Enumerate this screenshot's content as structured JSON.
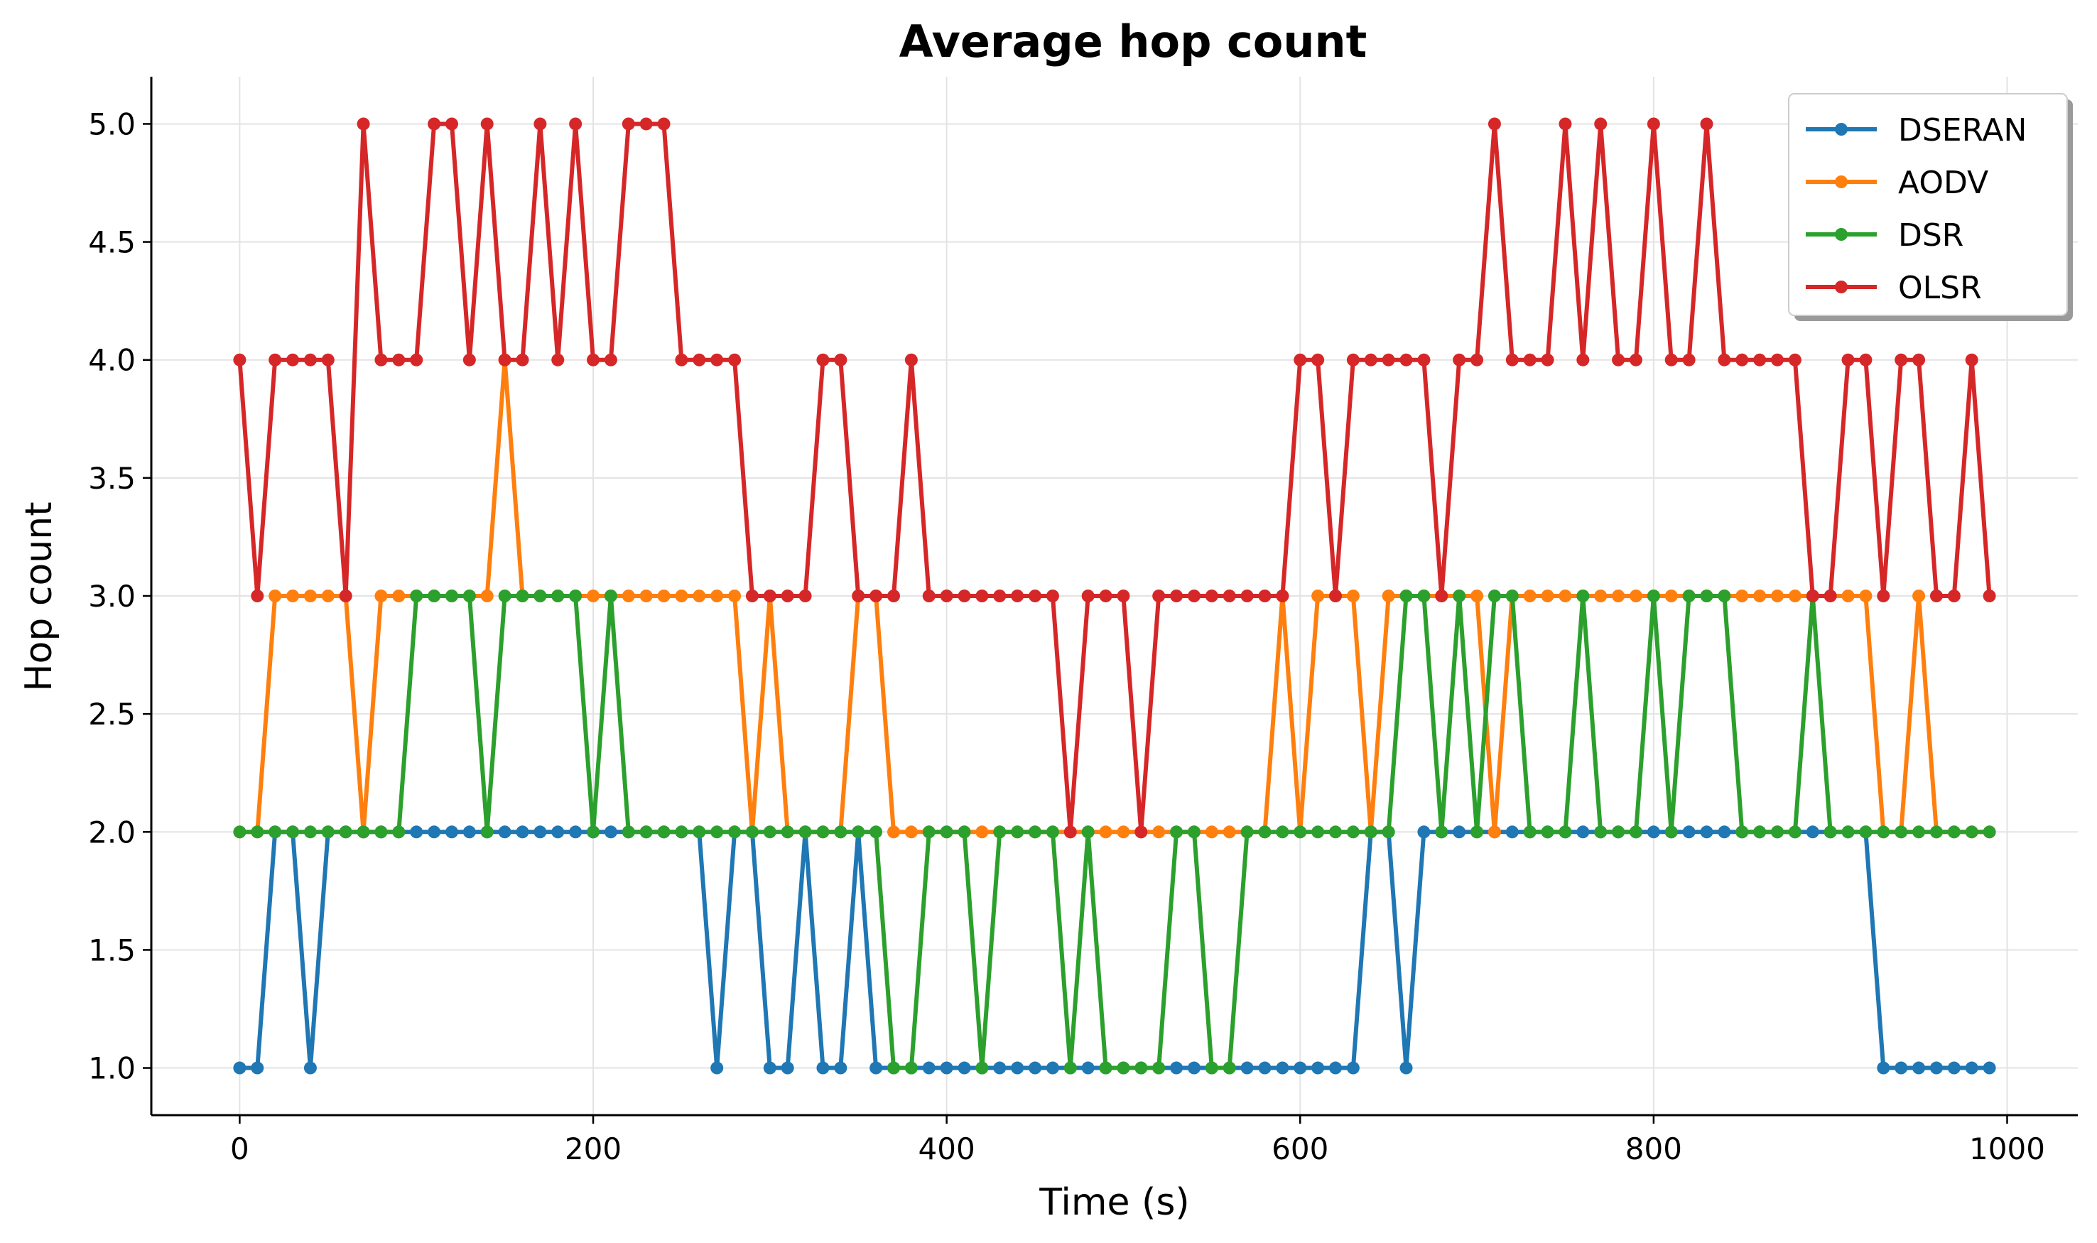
{
  "chart_data": {
    "type": "line",
    "title": "Average hop count",
    "xlabel": "Time (s)",
    "ylabel": "Hop count",
    "xlim": [
      -50,
      1040
    ],
    "ylim": [
      0.8,
      5.2
    ],
    "xticks": [
      0,
      200,
      400,
      600,
      800,
      1000
    ],
    "xtick_labels": [
      "0",
      "200",
      "400",
      "600",
      "800",
      "1000"
    ],
    "yticks": [
      1.0,
      1.5,
      2.0,
      2.5,
      3.0,
      3.5,
      4.0,
      4.5,
      5.0
    ],
    "ytick_labels": [
      "1.0",
      "1.5",
      "2.0",
      "2.5",
      "3.0",
      "3.5",
      "4.0",
      "4.5",
      "5.0"
    ],
    "grid": true,
    "legend_position": "top-right",
    "x": [
      0,
      10,
      20,
      30,
      40,
      50,
      60,
      70,
      80,
      90,
      100,
      110,
      120,
      130,
      140,
      150,
      160,
      170,
      180,
      190,
      200,
      210,
      220,
      230,
      240,
      250,
      260,
      270,
      280,
      290,
      300,
      310,
      320,
      330,
      340,
      350,
      360,
      370,
      380,
      390,
      400,
      410,
      420,
      430,
      440,
      450,
      460,
      470,
      480,
      490,
      500,
      510,
      520,
      530,
      540,
      550,
      560,
      570,
      580,
      590,
      600,
      610,
      620,
      630,
      640,
      650,
      660,
      670,
      680,
      690,
      700,
      710,
      720,
      730,
      740,
      750,
      760,
      770,
      780,
      790,
      800,
      810,
      820,
      830,
      840,
      850,
      860,
      870,
      880,
      890,
      900,
      910,
      920,
      930,
      940,
      950,
      960,
      970,
      980,
      990
    ],
    "series": [
      {
        "name": "DSERAN",
        "color": "#1f77b4",
        "values": [
          1,
          1,
          2,
          2,
          1,
          2,
          2,
          2,
          2,
          2,
          2,
          2,
          2,
          2,
          2,
          2,
          2,
          2,
          2,
          2,
          2,
          2,
          2,
          2,
          2,
          2,
          2,
          1,
          2,
          2,
          1,
          1,
          2,
          1,
          1,
          2,
          1,
          1,
          1,
          1,
          1,
          1,
          1,
          1,
          1,
          1,
          1,
          1,
          1,
          1,
          1,
          1,
          1,
          1,
          1,
          1,
          1,
          1,
          1,
          1,
          1,
          1,
          1,
          1,
          2,
          2,
          1,
          2,
          2,
          2,
          2,
          2,
          2,
          2,
          2,
          2,
          2,
          2,
          2,
          2,
          2,
          2,
          2,
          2,
          2,
          2,
          2,
          2,
          2,
          2,
          2,
          2,
          2,
          1,
          1,
          1,
          1,
          1,
          1,
          1
        ]
      },
      {
        "name": "AODV",
        "color": "#ff7f0e",
        "values": [
          2,
          2,
          3,
          3,
          3,
          3,
          3,
          2,
          3,
          3,
          3,
          3,
          3,
          3,
          3,
          4,
          3,
          3,
          3,
          3,
          3,
          3,
          3,
          3,
          3,
          3,
          3,
          3,
          3,
          2,
          3,
          2,
          2,
          2,
          2,
          3,
          3,
          2,
          2,
          2,
          2,
          2,
          2,
          2,
          2,
          2,
          2,
          2,
          2,
          2,
          2,
          2,
          2,
          2,
          2,
          2,
          2,
          2,
          2,
          3,
          2,
          3,
          3,
          3,
          2,
          3,
          3,
          3,
          3,
          3,
          3,
          2,
          3,
          3,
          3,
          3,
          3,
          3,
          3,
          3,
          3,
          3,
          3,
          3,
          3,
          3,
          3,
          3,
          3,
          3,
          3,
          3,
          3,
          2,
          2,
          3,
          2,
          2,
          2,
          2
        ]
      },
      {
        "name": "DSR",
        "color": "#2ca02c",
        "values": [
          2,
          2,
          2,
          2,
          2,
          2,
          2,
          2,
          2,
          2,
          3,
          3,
          3,
          3,
          2,
          3,
          3,
          3,
          3,
          3,
          2,
          3,
          2,
          2,
          2,
          2,
          2,
          2,
          2,
          2,
          2,
          2,
          2,
          2,
          2,
          2,
          2,
          1,
          1,
          2,
          2,
          2,
          1,
          2,
          2,
          2,
          2,
          1,
          2,
          1,
          1,
          1,
          1,
          2,
          2,
          1,
          1,
          2,
          2,
          2,
          2,
          2,
          2,
          2,
          2,
          2,
          3,
          3,
          2,
          3,
          2,
          3,
          3,
          2,
          2,
          2,
          3,
          2,
          2,
          2,
          3,
          2,
          3,
          3,
          3,
          2,
          2,
          2,
          2,
          3,
          2,
          2,
          2,
          2,
          2,
          2,
          2,
          2,
          2,
          2
        ]
      },
      {
        "name": "OLSR",
        "color": "#d62728",
        "values": [
          4,
          3,
          4,
          4,
          4,
          4,
          3,
          5,
          4,
          4,
          4,
          5,
          5,
          4,
          5,
          4,
          4,
          5,
          4,
          5,
          4,
          4,
          5,
          5,
          5,
          4,
          4,
          4,
          4,
          3,
          3,
          3,
          3,
          4,
          4,
          3,
          3,
          3,
          4,
          3,
          3,
          3,
          3,
          3,
          3,
          3,
          3,
          2,
          3,
          3,
          3,
          2,
          3,
          3,
          3,
          3,
          3,
          3,
          3,
          3,
          4,
          4,
          3,
          4,
          4,
          4,
          4,
          4,
          3,
          4,
          4,
          5,
          4,
          4,
          4,
          5,
          4,
          5,
          4,
          4,
          5,
          4,
          4,
          5,
          4,
          4,
          4,
          4,
          4,
          3,
          3,
          4,
          4,
          3,
          4,
          4,
          3,
          3,
          4,
          3
        ]
      }
    ]
  }
}
